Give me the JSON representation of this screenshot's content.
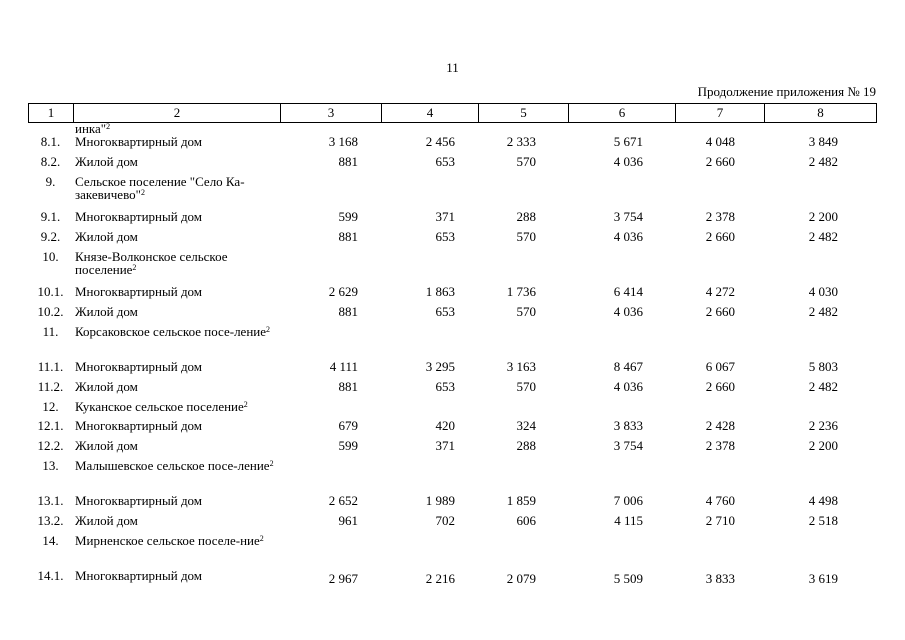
{
  "page_number": "11",
  "appendix_note": "Продолжение приложения № 19",
  "header": [
    "1",
    "2",
    "3",
    "4",
    "5",
    "6",
    "7",
    "8"
  ],
  "rows": [
    {
      "num": "",
      "name": "инка\"",
      "sup": "2",
      "v": [
        "",
        "",
        "",
        "",
        "",
        ""
      ]
    },
    {
      "num": "8.1.",
      "name": "Многоквартирный дом",
      "sup": "",
      "v": [
        "3 168",
        "2 456",
        "2 333",
        "5 671",
        "4 048",
        "3 849"
      ]
    },
    {
      "num": "8.2.",
      "name": "Жилой дом",
      "sup": "",
      "v": [
        "881",
        "653",
        "570",
        "4 036",
        "2 660",
        "2 482"
      ]
    },
    {
      "num": "9.",
      "name": "Сельское поселение \"Село Ка-закевичево\"",
      "sup": "2",
      "v": [
        "",
        "",
        "",
        "",
        "",
        ""
      ]
    },
    {
      "num": "9.1.",
      "name": "Многоквартирный дом",
      "sup": "",
      "v": [
        "599",
        "371",
        "288",
        "3 754",
        "2 378",
        "2 200"
      ]
    },
    {
      "num": "9.2.",
      "name": "Жилой дом",
      "sup": "",
      "v": [
        "881",
        "653",
        "570",
        "4 036",
        "2 660",
        "2 482"
      ]
    },
    {
      "num": "10.",
      "name": "Князе-Волконское сельское поселение",
      "sup": "2",
      "v": [
        "",
        "",
        "",
        "",
        "",
        ""
      ]
    },
    {
      "num": "10.1.",
      "name": "Многоквартирный дом",
      "sup": "",
      "v": [
        "2 629",
        "1 863",
        "1 736",
        "6 414",
        "4 272",
        "4 030"
      ]
    },
    {
      "num": "10.2.",
      "name": "Жилой дом",
      "sup": "",
      "v": [
        "881",
        "653",
        "570",
        "4 036",
        "2 660",
        "2 482"
      ]
    },
    {
      "num": "11.",
      "name": "Корсаковское сельское посе-ление",
      "sup": "2",
      "v": [
        "",
        "",
        "",
        "",
        "",
        ""
      ]
    },
    {
      "num": "11.1.",
      "name": "Многоквартирный дом",
      "sup": "",
      "v": [
        "4 111",
        "3 295",
        "3 163",
        "8 467",
        "6 067",
        "5 803"
      ]
    },
    {
      "num": "11.2.",
      "name": "Жилой дом",
      "sup": "",
      "v": [
        "881",
        "653",
        "570",
        "4 036",
        "2 660",
        "2 482"
      ]
    },
    {
      "num": "12.",
      "name": "Куканское сельское поселение",
      "sup": "2",
      "v": [
        "",
        "",
        "",
        "",
        "",
        ""
      ]
    },
    {
      "num": "12.1.",
      "name": "Многоквартирный дом",
      "sup": "",
      "v": [
        "679",
        "420",
        "324",
        "3 833",
        "2 428",
        "2 236"
      ]
    },
    {
      "num": "12.2.",
      "name": "Жилой дом",
      "sup": "",
      "v": [
        "599",
        "371",
        "288",
        "3 754",
        "2 378",
        "2 200"
      ]
    },
    {
      "num": "13.",
      "name": "Малышевское сельское посе-ление",
      "sup": "2",
      "v": [
        "",
        "",
        "",
        "",
        "",
        ""
      ]
    },
    {
      "num": "13.1.",
      "name": "Многоквартирный дом",
      "sup": "",
      "v": [
        "2 652",
        "1 989",
        "1 859",
        "7 006",
        "4 760",
        "4 498"
      ]
    },
    {
      "num": "13.2.",
      "name": "Жилой дом",
      "sup": "",
      "v": [
        "961",
        "702",
        "606",
        "4 115",
        "2 710",
        "2 518"
      ]
    },
    {
      "num": "14.",
      "name": "Мирненское сельское поселе-ние",
      "sup": "2",
      "v": [
        "",
        "",
        "",
        "",
        "",
        ""
      ]
    },
    {
      "num": "14.1.",
      "name": "Многоквартирный дом",
      "sup": "",
      "v": [
        "2 967",
        "2 216",
        "2 079",
        "5 509",
        "3 833",
        "3 619"
      ]
    }
  ]
}
